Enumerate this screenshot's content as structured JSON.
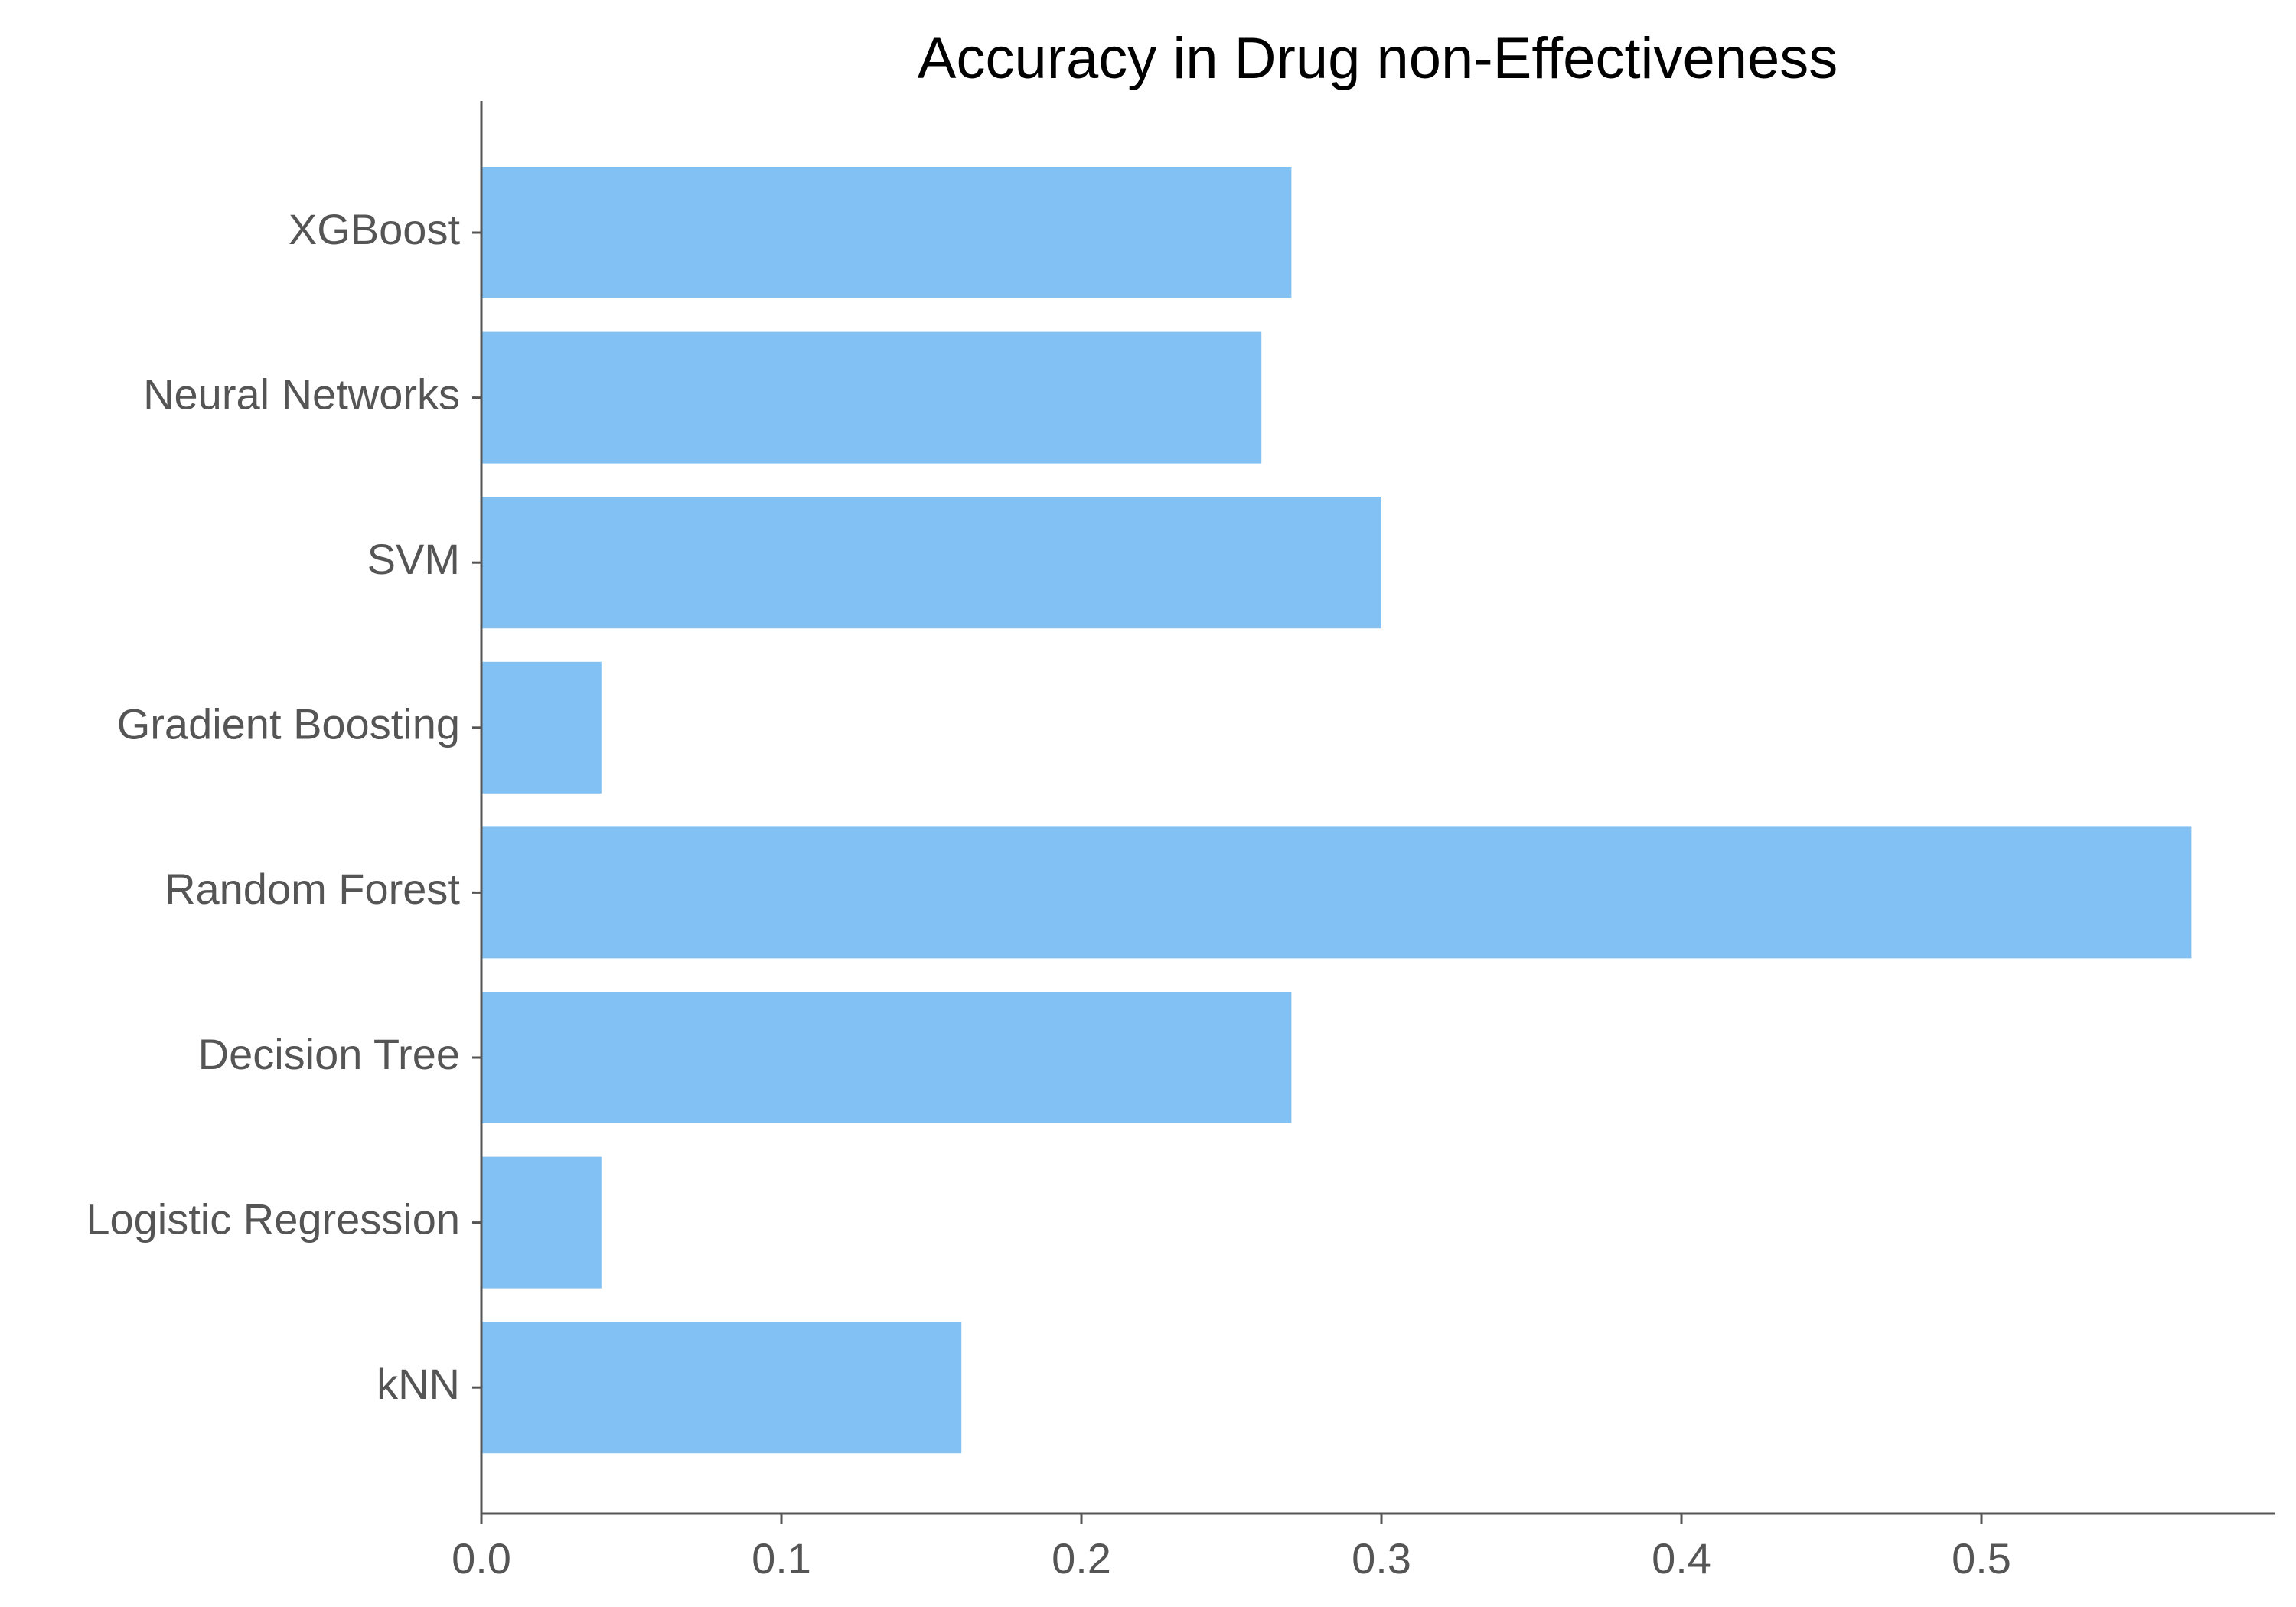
{
  "chart_data": {
    "type": "bar",
    "orientation": "horizontal",
    "title": "Accuracy in Drug non-Effectiveness",
    "xlabel": "",
    "ylabel": "",
    "categories": [
      "kNN",
      "Logistic Regression",
      "Decision Tree",
      "Random Forest",
      "Gradient Boosting",
      "SVM",
      "Neural Networks",
      "XGBoost"
    ],
    "values": [
      0.16,
      0.04,
      0.27,
      0.57,
      0.04,
      0.3,
      0.26,
      0.27
    ],
    "xlim": [
      0,
      0.6
    ],
    "xticks": [
      "0.0",
      "0.1",
      "0.2",
      "0.3",
      "0.4",
      "0.5"
    ],
    "grid": false,
    "bar_color": "#82c1f3"
  }
}
